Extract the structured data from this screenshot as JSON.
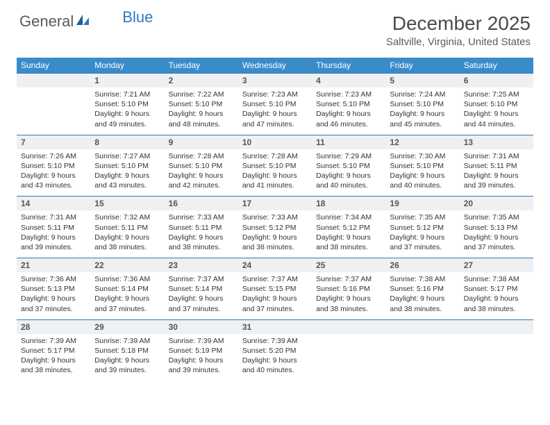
{
  "logo": {
    "part1": "General",
    "part2": "Blue"
  },
  "title": "December 2025",
  "location": "Saltville, Virginia, United States",
  "colors": {
    "header_bg": "#3a8cc9",
    "daynum_bg": "#eef0f2",
    "border": "#2b7bbf",
    "logo_gray": "#5a5a5a",
    "logo_blue": "#2b7bbf"
  },
  "weekdays": [
    "Sunday",
    "Monday",
    "Tuesday",
    "Wednesday",
    "Thursday",
    "Friday",
    "Saturday"
  ],
  "weeks": [
    {
      "nums": [
        "",
        "1",
        "2",
        "3",
        "4",
        "5",
        "6"
      ],
      "cells": [
        null,
        {
          "sr": "Sunrise: 7:21 AM",
          "ss": "Sunset: 5:10 PM",
          "d1": "Daylight: 9 hours",
          "d2": "and 49 minutes."
        },
        {
          "sr": "Sunrise: 7:22 AM",
          "ss": "Sunset: 5:10 PM",
          "d1": "Daylight: 9 hours",
          "d2": "and 48 minutes."
        },
        {
          "sr": "Sunrise: 7:23 AM",
          "ss": "Sunset: 5:10 PM",
          "d1": "Daylight: 9 hours",
          "d2": "and 47 minutes."
        },
        {
          "sr": "Sunrise: 7:23 AM",
          "ss": "Sunset: 5:10 PM",
          "d1": "Daylight: 9 hours",
          "d2": "and 46 minutes."
        },
        {
          "sr": "Sunrise: 7:24 AM",
          "ss": "Sunset: 5:10 PM",
          "d1": "Daylight: 9 hours",
          "d2": "and 45 minutes."
        },
        {
          "sr": "Sunrise: 7:25 AM",
          "ss": "Sunset: 5:10 PM",
          "d1": "Daylight: 9 hours",
          "d2": "and 44 minutes."
        }
      ]
    },
    {
      "nums": [
        "7",
        "8",
        "9",
        "10",
        "11",
        "12",
        "13"
      ],
      "cells": [
        {
          "sr": "Sunrise: 7:26 AM",
          "ss": "Sunset: 5:10 PM",
          "d1": "Daylight: 9 hours",
          "d2": "and 43 minutes."
        },
        {
          "sr": "Sunrise: 7:27 AM",
          "ss": "Sunset: 5:10 PM",
          "d1": "Daylight: 9 hours",
          "d2": "and 43 minutes."
        },
        {
          "sr": "Sunrise: 7:28 AM",
          "ss": "Sunset: 5:10 PM",
          "d1": "Daylight: 9 hours",
          "d2": "and 42 minutes."
        },
        {
          "sr": "Sunrise: 7:28 AM",
          "ss": "Sunset: 5:10 PM",
          "d1": "Daylight: 9 hours",
          "d2": "and 41 minutes."
        },
        {
          "sr": "Sunrise: 7:29 AM",
          "ss": "Sunset: 5:10 PM",
          "d1": "Daylight: 9 hours",
          "d2": "and 40 minutes."
        },
        {
          "sr": "Sunrise: 7:30 AM",
          "ss": "Sunset: 5:10 PM",
          "d1": "Daylight: 9 hours",
          "d2": "and 40 minutes."
        },
        {
          "sr": "Sunrise: 7:31 AM",
          "ss": "Sunset: 5:11 PM",
          "d1": "Daylight: 9 hours",
          "d2": "and 39 minutes."
        }
      ]
    },
    {
      "nums": [
        "14",
        "15",
        "16",
        "17",
        "18",
        "19",
        "20"
      ],
      "cells": [
        {
          "sr": "Sunrise: 7:31 AM",
          "ss": "Sunset: 5:11 PM",
          "d1": "Daylight: 9 hours",
          "d2": "and 39 minutes."
        },
        {
          "sr": "Sunrise: 7:32 AM",
          "ss": "Sunset: 5:11 PM",
          "d1": "Daylight: 9 hours",
          "d2": "and 38 minutes."
        },
        {
          "sr": "Sunrise: 7:33 AM",
          "ss": "Sunset: 5:11 PM",
          "d1": "Daylight: 9 hours",
          "d2": "and 38 minutes."
        },
        {
          "sr": "Sunrise: 7:33 AM",
          "ss": "Sunset: 5:12 PM",
          "d1": "Daylight: 9 hours",
          "d2": "and 38 minutes."
        },
        {
          "sr": "Sunrise: 7:34 AM",
          "ss": "Sunset: 5:12 PM",
          "d1": "Daylight: 9 hours",
          "d2": "and 38 minutes."
        },
        {
          "sr": "Sunrise: 7:35 AM",
          "ss": "Sunset: 5:12 PM",
          "d1": "Daylight: 9 hours",
          "d2": "and 37 minutes."
        },
        {
          "sr": "Sunrise: 7:35 AM",
          "ss": "Sunset: 5:13 PM",
          "d1": "Daylight: 9 hours",
          "d2": "and 37 minutes."
        }
      ]
    },
    {
      "nums": [
        "21",
        "22",
        "23",
        "24",
        "25",
        "26",
        "27"
      ],
      "cells": [
        {
          "sr": "Sunrise: 7:36 AM",
          "ss": "Sunset: 5:13 PM",
          "d1": "Daylight: 9 hours",
          "d2": "and 37 minutes."
        },
        {
          "sr": "Sunrise: 7:36 AM",
          "ss": "Sunset: 5:14 PM",
          "d1": "Daylight: 9 hours",
          "d2": "and 37 minutes."
        },
        {
          "sr": "Sunrise: 7:37 AM",
          "ss": "Sunset: 5:14 PM",
          "d1": "Daylight: 9 hours",
          "d2": "and 37 minutes."
        },
        {
          "sr": "Sunrise: 7:37 AM",
          "ss": "Sunset: 5:15 PM",
          "d1": "Daylight: 9 hours",
          "d2": "and 37 minutes."
        },
        {
          "sr": "Sunrise: 7:37 AM",
          "ss": "Sunset: 5:16 PM",
          "d1": "Daylight: 9 hours",
          "d2": "and 38 minutes."
        },
        {
          "sr": "Sunrise: 7:38 AM",
          "ss": "Sunset: 5:16 PM",
          "d1": "Daylight: 9 hours",
          "d2": "and 38 minutes."
        },
        {
          "sr": "Sunrise: 7:38 AM",
          "ss": "Sunset: 5:17 PM",
          "d1": "Daylight: 9 hours",
          "d2": "and 38 minutes."
        }
      ]
    },
    {
      "nums": [
        "28",
        "29",
        "30",
        "31",
        "",
        "",
        ""
      ],
      "cells": [
        {
          "sr": "Sunrise: 7:39 AM",
          "ss": "Sunset: 5:17 PM",
          "d1": "Daylight: 9 hours",
          "d2": "and 38 minutes."
        },
        {
          "sr": "Sunrise: 7:39 AM",
          "ss": "Sunset: 5:18 PM",
          "d1": "Daylight: 9 hours",
          "d2": "and 39 minutes."
        },
        {
          "sr": "Sunrise: 7:39 AM",
          "ss": "Sunset: 5:19 PM",
          "d1": "Daylight: 9 hours",
          "d2": "and 39 minutes."
        },
        {
          "sr": "Sunrise: 7:39 AM",
          "ss": "Sunset: 5:20 PM",
          "d1": "Daylight: 9 hours",
          "d2": "and 40 minutes."
        },
        null,
        null,
        null
      ]
    }
  ]
}
